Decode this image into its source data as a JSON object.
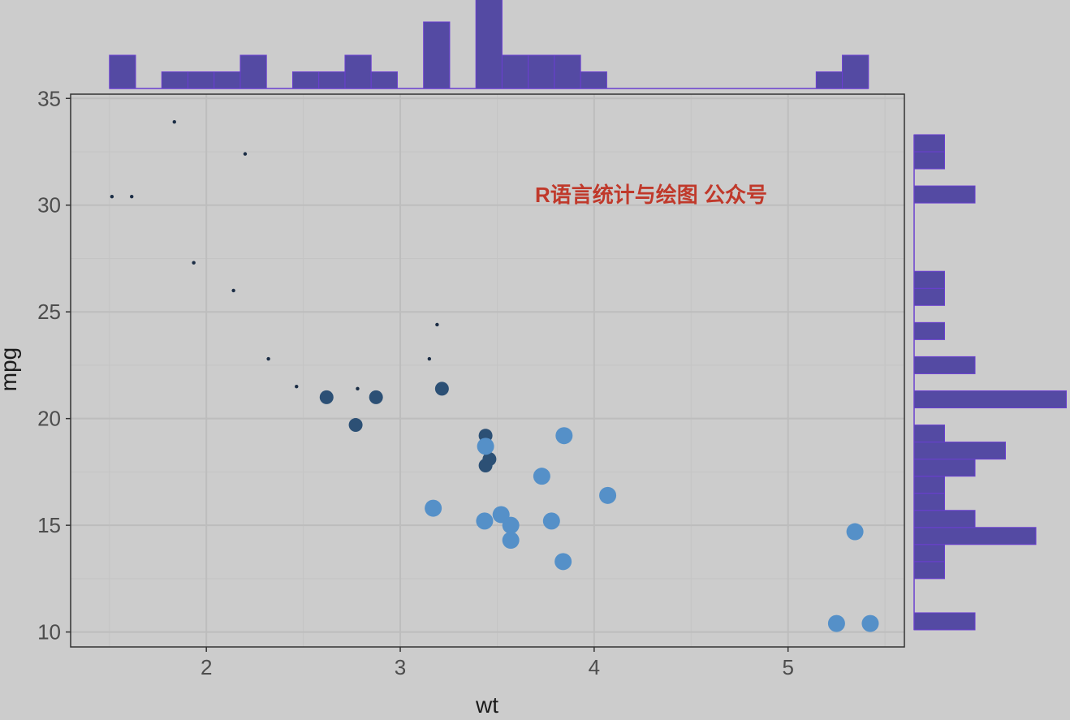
{
  "chart_data": {
    "type": "scatter",
    "title": "",
    "xlabel": "wt",
    "ylabel": "mpg",
    "xlim": [
      1.3,
      5.6
    ],
    "ylim": [
      9.3,
      35.2
    ],
    "x_ticks": [
      2,
      3,
      4,
      5
    ],
    "y_ticks": [
      10,
      15,
      20,
      25,
      30,
      35
    ],
    "grid": true,
    "legend": "none",
    "annotation": "R语言统计与绘图 公众号",
    "colors": {
      "background": "#cccccc",
      "grid_major": "#bdbdbd",
      "grid_minor": "#c4c4c4",
      "axis": "#333333",
      "histogram_fill": "#544aa3",
      "histogram_edge": "#6a3fd0",
      "annotation": "#c0392b",
      "small_point": "#1b2d45",
      "medium_point": "#2c5075",
      "large_point": "#5590c8"
    },
    "points": [
      {
        "wt": 2.62,
        "mpg": 21.0,
        "size": "medium"
      },
      {
        "wt": 2.875,
        "mpg": 21.0,
        "size": "medium"
      },
      {
        "wt": 2.32,
        "mpg": 22.8,
        "size": "small"
      },
      {
        "wt": 3.215,
        "mpg": 21.4,
        "size": "medium"
      },
      {
        "wt": 3.44,
        "mpg": 18.7,
        "size": "large"
      },
      {
        "wt": 3.46,
        "mpg": 18.1,
        "size": "medium"
      },
      {
        "wt": 3.57,
        "mpg": 14.3,
        "size": "large"
      },
      {
        "wt": 3.19,
        "mpg": 24.4,
        "size": "small"
      },
      {
        "wt": 3.15,
        "mpg": 22.8,
        "size": "small"
      },
      {
        "wt": 3.44,
        "mpg": 19.2,
        "size": "medium"
      },
      {
        "wt": 3.44,
        "mpg": 17.8,
        "size": "medium"
      },
      {
        "wt": 4.07,
        "mpg": 16.4,
        "size": "large"
      },
      {
        "wt": 3.73,
        "mpg": 17.3,
        "size": "large"
      },
      {
        "wt": 3.78,
        "mpg": 15.2,
        "size": "large"
      },
      {
        "wt": 5.25,
        "mpg": 10.4,
        "size": "large"
      },
      {
        "wt": 5.424,
        "mpg": 10.4,
        "size": "large"
      },
      {
        "wt": 5.345,
        "mpg": 14.7,
        "size": "large"
      },
      {
        "wt": 2.2,
        "mpg": 32.4,
        "size": "small"
      },
      {
        "wt": 1.615,
        "mpg": 30.4,
        "size": "small"
      },
      {
        "wt": 1.835,
        "mpg": 33.9,
        "size": "small"
      },
      {
        "wt": 2.465,
        "mpg": 21.5,
        "size": "small"
      },
      {
        "wt": 3.52,
        "mpg": 15.5,
        "size": "large"
      },
      {
        "wt": 3.435,
        "mpg": 15.2,
        "size": "large"
      },
      {
        "wt": 3.84,
        "mpg": 13.3,
        "size": "large"
      },
      {
        "wt": 3.845,
        "mpg": 19.2,
        "size": "large"
      },
      {
        "wt": 1.935,
        "mpg": 27.3,
        "size": "small"
      },
      {
        "wt": 2.14,
        "mpg": 26.0,
        "size": "small"
      },
      {
        "wt": 1.513,
        "mpg": 30.4,
        "size": "small"
      },
      {
        "wt": 3.17,
        "mpg": 15.8,
        "size": "large"
      },
      {
        "wt": 2.77,
        "mpg": 19.7,
        "size": "medium"
      },
      {
        "wt": 3.57,
        "mpg": 15.0,
        "size": "large"
      },
      {
        "wt": 2.78,
        "mpg": 21.4,
        "size": "small"
      }
    ],
    "top_histogram": {
      "bins": [
        {
          "x0": 1.5,
          "x1": 1.635,
          "count": 2
        },
        {
          "x0": 1.635,
          "x1": 1.77,
          "count": 0
        },
        {
          "x0": 1.77,
          "x1": 1.905,
          "count": 1
        },
        {
          "x0": 1.905,
          "x1": 2.04,
          "count": 1
        },
        {
          "x0": 2.04,
          "x1": 2.175,
          "count": 1
        },
        {
          "x0": 2.175,
          "x1": 2.31,
          "count": 2
        },
        {
          "x0": 2.31,
          "x1": 2.445,
          "count": 0
        },
        {
          "x0": 2.445,
          "x1": 2.58,
          "count": 1
        },
        {
          "x0": 2.58,
          "x1": 2.715,
          "count": 1
        },
        {
          "x0": 2.715,
          "x1": 2.85,
          "count": 2
        },
        {
          "x0": 2.85,
          "x1": 2.985,
          "count": 1
        },
        {
          "x0": 2.985,
          "x1": 3.12,
          "count": 0
        },
        {
          "x0": 3.12,
          "x1": 3.255,
          "count": 4
        },
        {
          "x0": 3.255,
          "x1": 3.39,
          "count": 0
        },
        {
          "x0": 3.39,
          "x1": 3.525,
          "count": 6
        },
        {
          "x0": 3.525,
          "x1": 3.66,
          "count": 2
        },
        {
          "x0": 3.66,
          "x1": 3.795,
          "count": 2
        },
        {
          "x0": 3.795,
          "x1": 3.93,
          "count": 2
        },
        {
          "x0": 3.93,
          "x1": 4.065,
          "count": 1
        },
        {
          "x0": 4.065,
          "x1": 4.2,
          "count": 0
        },
        {
          "x0": 4.2,
          "x1": 4.335,
          "count": 0
        },
        {
          "x0": 4.335,
          "x1": 4.47,
          "count": 0
        },
        {
          "x0": 4.47,
          "x1": 4.605,
          "count": 0
        },
        {
          "x0": 4.605,
          "x1": 4.74,
          "count": 0
        },
        {
          "x0": 4.74,
          "x1": 4.875,
          "count": 0
        },
        {
          "x0": 4.875,
          "x1": 5.01,
          "count": 0
        },
        {
          "x0": 5.01,
          "x1": 5.145,
          "count": 0
        },
        {
          "x0": 5.145,
          "x1": 5.28,
          "count": 1
        },
        {
          "x0": 5.28,
          "x1": 5.415,
          "count": 2
        }
      ]
    },
    "right_histogram": {
      "bins": [
        {
          "y0": 10.1,
          "y1": 10.9,
          "count": 2
        },
        {
          "y0": 10.9,
          "y1": 11.7,
          "count": 0
        },
        {
          "y0": 11.7,
          "y1": 12.5,
          "count": 0
        },
        {
          "y0": 12.5,
          "y1": 13.3,
          "count": 1
        },
        {
          "y0": 13.3,
          "y1": 14.1,
          "count": 1
        },
        {
          "y0": 14.1,
          "y1": 14.9,
          "count": 4
        },
        {
          "y0": 14.9,
          "y1": 15.7,
          "count": 2
        },
        {
          "y0": 15.7,
          "y1": 16.5,
          "count": 1
        },
        {
          "y0": 16.5,
          "y1": 17.3,
          "count": 1
        },
        {
          "y0": 17.3,
          "y1": 18.1,
          "count": 2
        },
        {
          "y0": 18.1,
          "y1": 18.9,
          "count": 3
        },
        {
          "y0": 18.9,
          "y1": 19.7,
          "count": 1
        },
        {
          "y0": 19.7,
          "y1": 20.5,
          "count": 0
        },
        {
          "y0": 20.5,
          "y1": 21.3,
          "count": 5
        },
        {
          "y0": 21.3,
          "y1": 22.1,
          "count": 0
        },
        {
          "y0": 22.1,
          "y1": 22.9,
          "count": 2
        },
        {
          "y0": 22.9,
          "y1": 23.7,
          "count": 0
        },
        {
          "y0": 23.7,
          "y1": 24.5,
          "count": 1
        },
        {
          "y0": 24.5,
          "y1": 25.3,
          "count": 0
        },
        {
          "y0": 25.3,
          "y1": 26.1,
          "count": 1
        },
        {
          "y0": 26.1,
          "y1": 26.9,
          "count": 1
        },
        {
          "y0": 26.9,
          "y1": 27.7,
          "count": 0
        },
        {
          "y0": 27.7,
          "y1": 28.5,
          "count": 0
        },
        {
          "y0": 28.5,
          "y1": 29.3,
          "count": 0
        },
        {
          "y0": 29.3,
          "y1": 30.1,
          "count": 0
        },
        {
          "y0": 30.1,
          "y1": 30.9,
          "count": 2
        },
        {
          "y0": 30.9,
          "y1": 31.7,
          "count": 0
        },
        {
          "y0": 31.7,
          "y1": 32.5,
          "count": 1
        },
        {
          "y0": 32.5,
          "y1": 33.3,
          "count": 1
        }
      ]
    }
  }
}
